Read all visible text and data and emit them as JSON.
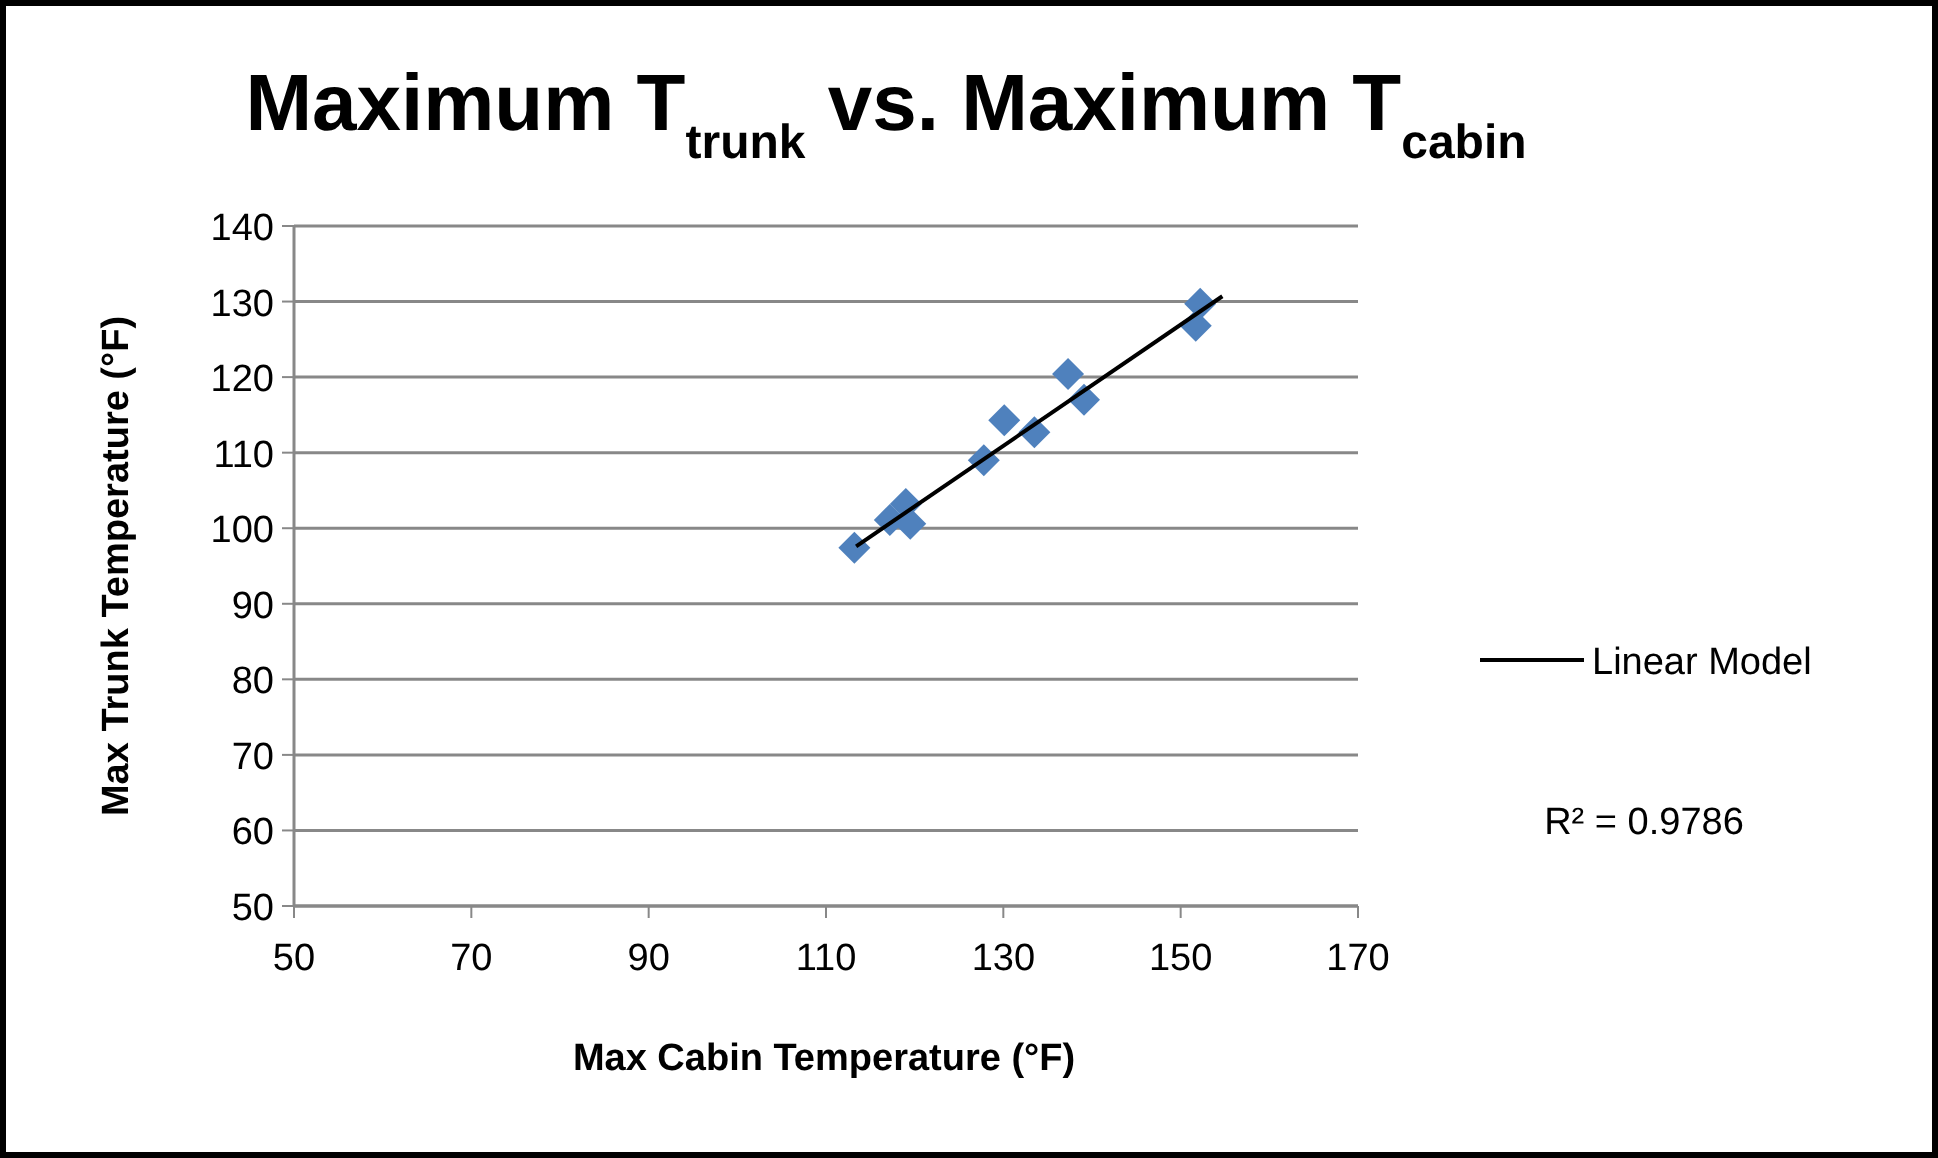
{
  "chart_data": {
    "type": "scatter",
    "title": "Maximum T$_{trunk}$ vs. Maximum T$_{cabin}$",
    "xlabel": "Max Cabin Temperature (°F)",
    "ylabel": "Max Trunk Temperature (°F)",
    "xlim": [
      50,
      170
    ],
    "xticks": [
      50,
      70,
      90,
      110,
      130,
      150,
      170
    ],
    "ylim": [
      50,
      140
    ],
    "yticks": [
      50,
      60,
      70,
      80,
      90,
      100,
      110,
      120,
      130,
      140
    ],
    "grid": "y",
    "legend": "right",
    "marker": "diamond",
    "annotations": [
      "R² = 0.9786"
    ],
    "series": [
      {
        "color": "#4f81bd",
        "x": [
          113.2,
          117.2,
          119.0,
          119.5,
          127.8,
          130.1,
          133.5,
          137.3,
          139.1,
          152.2,
          151.7
        ],
        "values": [
          97.4,
          101.1,
          103.2,
          100.6,
          109.0,
          114.3,
          112.7,
          120.4,
          117.0,
          129.7,
          126.8
        ]
      },
      {
        "type": "line",
        "name": "Linear Model",
        "color": "#000000",
        "line_style": "solid",
        "marker": "none",
        "x": [
          113.4,
          154.7
        ],
        "values": [
          97.6,
          130.7
        ]
      }
    ]
  }
}
